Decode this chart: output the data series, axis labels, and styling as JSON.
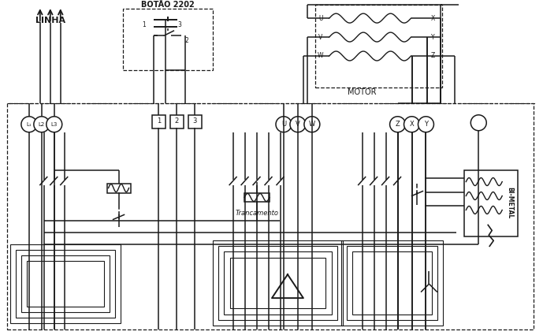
{
  "bg_color": "#ffffff",
  "line_color": "#1a1a1a",
  "fig_width": 6.89,
  "fig_height": 4.25,
  "dpi": 100,
  "labels": {
    "linha": "LINHA",
    "botao": "BOTÃO 2202",
    "motor": "MOTOR",
    "trancamento": "Trancamento",
    "bi_metal": "BI-METAL",
    "L1": "L₁",
    "L2": "L2",
    "L3": "L3",
    "U": "U",
    "V": "V",
    "W": "W",
    "Z": "Z",
    "X": "X",
    "Y": "Y",
    "n1": "1",
    "n2": "2",
    "n3": "3"
  }
}
